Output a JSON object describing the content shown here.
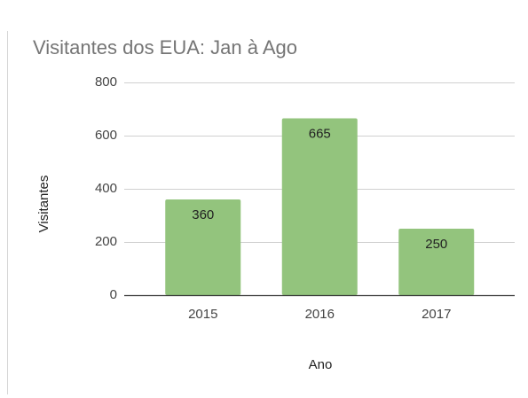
{
  "chart_data": {
    "type": "bar",
    "title": "Visitantes dos EUA: Jan à Ago",
    "x_label": "Ano",
    "y_label": "Visitantes",
    "categories": [
      "2015",
      "2016",
      "2017"
    ],
    "values": [
      360,
      665,
      250
    ],
    "color": "#93c47d",
    "ylim": [
      0,
      800
    ],
    "yticks": [
      0,
      200,
      400,
      600,
      800
    ],
    "grid": true,
    "data_labels": true
  }
}
